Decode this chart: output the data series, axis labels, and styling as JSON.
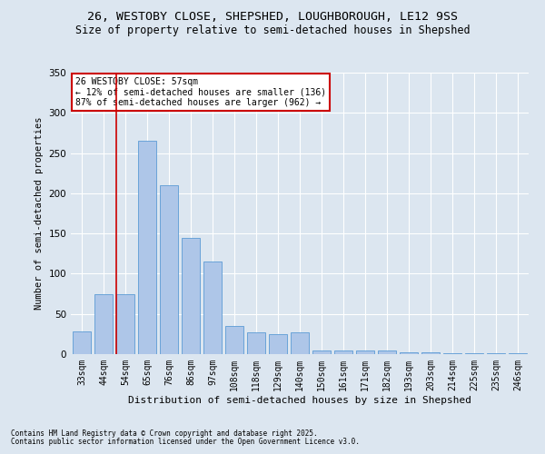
{
  "title_line1": "26, WESTOBY CLOSE, SHEPSHED, LOUGHBOROUGH, LE12 9SS",
  "title_line2": "Size of property relative to semi-detached houses in Shepshed",
  "xlabel": "Distribution of semi-detached houses by size in Shepshed",
  "ylabel": "Number of semi-detached properties",
  "categories": [
    "33sqm",
    "44sqm",
    "54sqm",
    "65sqm",
    "76sqm",
    "86sqm",
    "97sqm",
    "108sqm",
    "118sqm",
    "129sqm",
    "140sqm",
    "150sqm",
    "161sqm",
    "171sqm",
    "182sqm",
    "193sqm",
    "203sqm",
    "214sqm",
    "225sqm",
    "235sqm",
    "246sqm"
  ],
  "values": [
    28,
    75,
    75,
    265,
    210,
    145,
    115,
    35,
    27,
    25,
    27,
    5,
    5,
    5,
    5,
    2,
    2,
    1,
    1,
    1,
    1
  ],
  "bar_color": "#aec6e8",
  "bar_edge_color": "#5b9bd5",
  "vline_color": "#cc0000",
  "annotation_title": "26 WESTOBY CLOSE: 57sqm",
  "annotation_line2": "← 12% of semi-detached houses are smaller (136)",
  "annotation_line3": "87% of semi-detached houses are larger (962) →",
  "annotation_box_color": "#cc0000",
  "footnote_line1": "Contains HM Land Registry data © Crown copyright and database right 2025.",
  "footnote_line2": "Contains public sector information licensed under the Open Government Licence v3.0.",
  "background_color": "#dce6f0",
  "plot_bg_color": "#dce6f0",
  "ylim": [
    0,
    350
  ],
  "yticks": [
    0,
    50,
    100,
    150,
    200,
    250,
    300,
    350
  ],
  "title_fontsize": 9.5,
  "subtitle_fontsize": 8.5
}
